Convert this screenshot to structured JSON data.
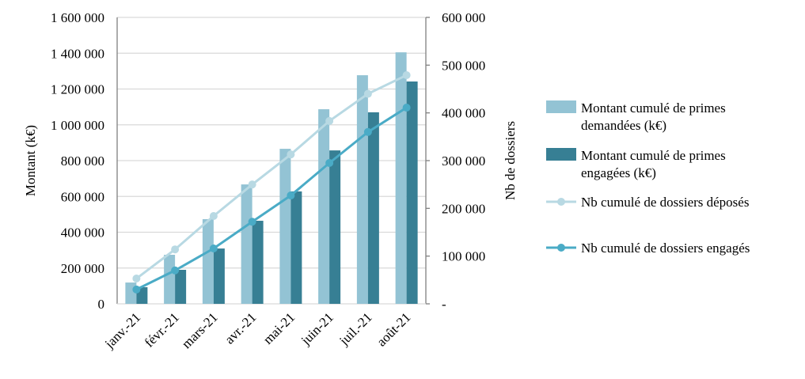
{
  "chart_data": {
    "type": "bar+line",
    "categories": [
      "janv.-21",
      "févr.-21",
      "mars-21",
      "avr.-21",
      "mai-21",
      "juin-21",
      "juil.-21",
      "août-21"
    ],
    "y_left": {
      "label": "Montant (k€)",
      "lim": [
        0,
        1600000
      ],
      "ticks": [
        "0",
        "200 000",
        "400 000",
        "600 000",
        "800 000",
        "1 000 000",
        "1 200 000",
        "1 400 000",
        "1 600 000"
      ]
    },
    "y_right": {
      "label": "Nb de dossiers",
      "lim": [
        0,
        600000
      ],
      "ticks": [
        "-",
        "100 000",
        "200 000",
        "300 000",
        "400 000",
        "500 000",
        "600 000"
      ]
    },
    "grid": true,
    "legend_position": "right",
    "series": [
      {
        "name": "Montant cumulé de primes demandées (k€)",
        "legend_lines": [
          "Montant cumulé de primes",
          "demandées (k€)"
        ],
        "type": "bar",
        "axis": "left",
        "color": "#93c3d4",
        "values": [
          119000,
          274000,
          473000,
          667000,
          866000,
          1087000,
          1277000,
          1405000
        ]
      },
      {
        "name": "Montant cumulé de primes engagées (k€)",
        "legend_lines": [
          "Montant cumulé de primes",
          "engagées (k€)"
        ],
        "type": "bar",
        "axis": "left",
        "color": "#377f94",
        "values": [
          93000,
          190000,
          309000,
          464000,
          628000,
          857000,
          1070000,
          1242000
        ]
      },
      {
        "name": "Nb cumulé de dossiers déposés",
        "legend_lines": [
          "Nb cumulé de dossiers déposés"
        ],
        "type": "line",
        "axis": "right",
        "color": "#b8d9e3",
        "values": [
          53000,
          114000,
          184000,
          250000,
          313000,
          383000,
          440000,
          479000
        ]
      },
      {
        "name": "Nb cumulé de dossiers engagés",
        "legend_lines": [
          "Nb cumulé de dossiers engagés"
        ],
        "type": "line",
        "axis": "right",
        "color": "#4aabc6",
        "values": [
          30000,
          70000,
          116000,
          172000,
          227000,
          295000,
          360000,
          411000
        ]
      }
    ]
  }
}
